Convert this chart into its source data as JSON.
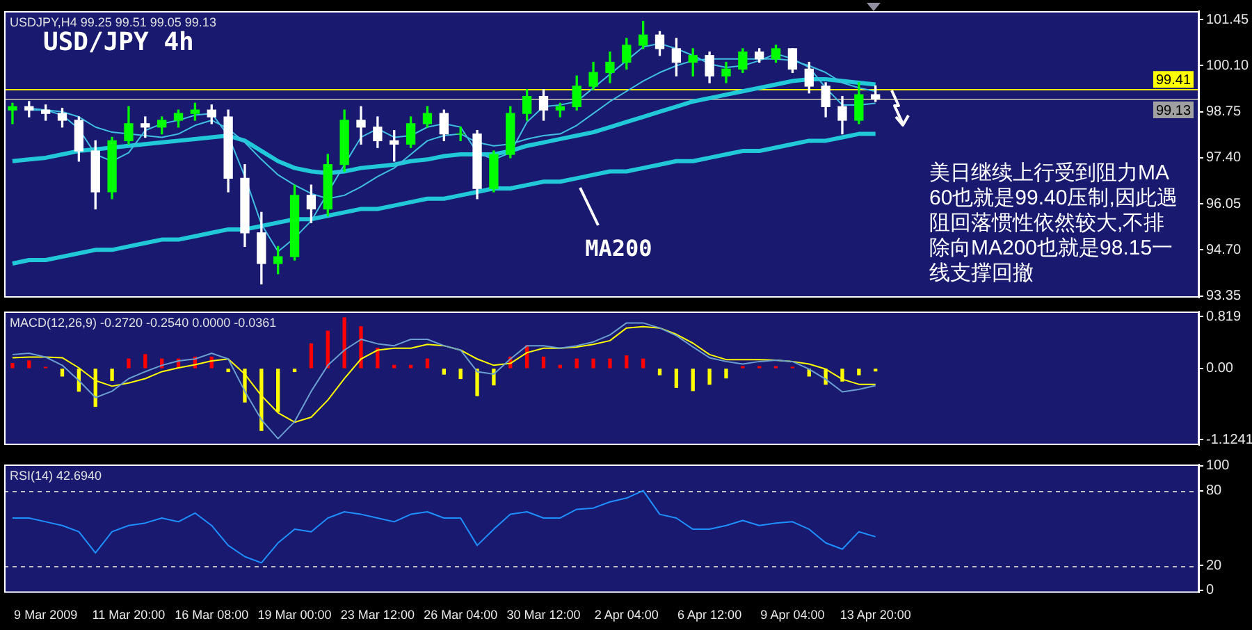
{
  "chart_data": [
    {
      "type": "candlestick",
      "title": "USD/JPY 4h",
      "subtitle": "USDJPY,H4 99.25 99.51 99.05 99.13",
      "colors": [
        "#00ff00",
        "#ffffff",
        "#ffffff",
        "#ffffff",
        "#ffffff",
        "#ffffff",
        "#00ff00",
        "#00ff00",
        "#ffffff",
        "#00ff00",
        "#00ff00",
        "#00ff00",
        "#ffffff",
        "#ffffff",
        "#ffffff",
        "#ffffff",
        "#00ff00",
        "#00ff00",
        "#ffffff",
        "#00ff00",
        "#00ff00",
        "#ffffff",
        "#ffffff",
        "#ffffff",
        "#00ff00",
        "#00ff00",
        "#ffffff",
        "#00ff00",
        "#ffffff",
        "#00ff00",
        "#00ff00",
        "#00ff00",
        "#ffffff",
        "#00ff00",
        "#00ff00",
        "#00ff00",
        "#00ff00",
        "#00ff00",
        "#00ff00",
        "#ffffff",
        "#ffffff",
        "#00ff00",
        "#ffffff",
        "#00ff00",
        "#00ff00",
        "#ffffff",
        "#00ff00",
        "#ffffff",
        "#ffffff",
        "#ffffff",
        "#ffffff",
        "#00ff00",
        "#ffffff",
        null,
        null,
        null,
        null,
        null,
        null,
        null,
        null,
        null,
        null,
        null,
        null,
        null,
        null,
        null,
        null,
        null,
        null,
        null
      ],
      "categories": [
        null,
        null,
        null,
        null,
        null,
        null,
        null,
        null,
        null,
        null,
        null,
        null,
        null,
        null,
        null,
        null,
        null,
        null,
        null,
        null,
        null,
        null,
        null,
        null,
        null,
        null,
        null,
        null,
        null,
        null,
        null,
        null,
        null,
        null,
        null,
        null,
        null,
        null,
        null,
        null,
        null,
        null,
        null,
        null,
        null,
        null,
        null,
        null,
        null,
        null,
        null,
        null,
        null,
        null,
        null,
        null,
        null,
        null,
        null,
        null,
        null,
        null,
        null,
        null,
        null,
        null,
        null,
        null,
        null,
        null,
        null,
        null
      ],
      "ohlc": [
        [
          98.8,
          99.0,
          98.4,
          98.9
        ],
        [
          98.9,
          99.05,
          98.6,
          98.8
        ],
        [
          98.8,
          98.95,
          98.5,
          98.7
        ],
        [
          98.7,
          98.85,
          98.3,
          98.5
        ],
        [
          98.5,
          98.6,
          97.3,
          97.6
        ],
        [
          97.6,
          97.9,
          95.9,
          96.4
        ],
        [
          96.4,
          98.0,
          96.2,
          97.9
        ],
        [
          97.9,
          98.9,
          97.8,
          98.4
        ],
        [
          98.4,
          98.6,
          98.0,
          98.3
        ],
        [
          98.3,
          98.6,
          98.1,
          98.5
        ],
        [
          98.5,
          98.8,
          98.3,
          98.7
        ],
        [
          98.7,
          99.0,
          98.5,
          98.8
        ],
        [
          98.8,
          98.95,
          98.4,
          98.6
        ],
        [
          98.6,
          98.8,
          96.4,
          96.8
        ],
        [
          96.8,
          97.2,
          94.8,
          95.2
        ],
        [
          95.2,
          95.8,
          93.7,
          94.3
        ],
        [
          94.3,
          94.8,
          94.0,
          94.5
        ],
        [
          94.5,
          96.6,
          94.4,
          96.3
        ],
        [
          96.3,
          96.6,
          95.5,
          95.9
        ],
        [
          95.9,
          97.5,
          95.7,
          97.2
        ],
        [
          97.2,
          98.8,
          97.0,
          98.5
        ],
        [
          98.5,
          98.9,
          97.8,
          98.3
        ],
        [
          98.3,
          98.6,
          97.7,
          97.9
        ],
        [
          97.9,
          98.2,
          97.3,
          97.8
        ],
        [
          97.8,
          98.6,
          97.7,
          98.4
        ],
        [
          98.4,
          98.9,
          98.3,
          98.7
        ],
        [
          98.7,
          98.8,
          97.9,
          98.1
        ],
        [
          98.1,
          98.3,
          97.9,
          98.1
        ],
        [
          98.1,
          98.2,
          96.2,
          96.5
        ],
        [
          96.5,
          97.6,
          96.4,
          97.5
        ],
        [
          97.5,
          98.9,
          97.4,
          98.7
        ],
        [
          98.7,
          99.4,
          98.5,
          99.2
        ],
        [
          99.2,
          99.4,
          98.5,
          98.8
        ],
        [
          98.8,
          99.0,
          98.6,
          98.9
        ],
        [
          98.9,
          99.8,
          98.8,
          99.5
        ],
        [
          99.5,
          100.2,
          99.4,
          99.9
        ],
        [
          99.9,
          100.5,
          99.6,
          100.2
        ],
        [
          100.2,
          100.9,
          100.0,
          100.7
        ],
        [
          100.7,
          101.4,
          100.6,
          101.0
        ],
        [
          101.0,
          101.1,
          100.4,
          100.6
        ],
        [
          100.6,
          100.9,
          99.8,
          100.2
        ],
        [
          100.2,
          100.6,
          99.8,
          100.4
        ],
        [
          100.4,
          100.5,
          99.6,
          99.8
        ],
        [
          99.8,
          100.2,
          99.6,
          100.0
        ],
        [
          100.0,
          100.6,
          99.9,
          100.5
        ],
        [
          100.5,
          100.6,
          100.2,
          100.3
        ],
        [
          100.3,
          100.7,
          100.2,
          100.6
        ],
        [
          100.6,
          100.6,
          99.9,
          100.0
        ],
        [
          100.0,
          100.2,
          99.3,
          99.5
        ],
        [
          99.5,
          99.6,
          98.6,
          98.9
        ],
        [
          98.9,
          99.2,
          98.1,
          98.5
        ],
        [
          98.5,
          99.6,
          98.4,
          99.25
        ],
        [
          99.25,
          99.51,
          99.05,
          99.13
        ],
        null,
        null,
        null,
        null,
        null,
        null,
        null,
        null,
        null,
        null,
        null,
        null,
        null,
        null,
        null,
        null,
        null,
        null,
        null
      ],
      "series": [
        {
          "type": "line",
          "color": "#40c0e0",
          "values": [
            null,
            98.85,
            98.8,
            98.65,
            98.25,
            97.5,
            97.3,
            97.55,
            98.2,
            98.4,
            98.5,
            98.65,
            98.7,
            98.05,
            96.85,
            95.45,
            94.65,
            95.05,
            95.55,
            null,
            97.2,
            98.0,
            98.25,
            98.0,
            98.05,
            98.3,
            98.4,
            98.3,
            97.55,
            97.35,
            97.55,
            98.45,
            98.9,
            98.95,
            99.05,
            99.45,
            99.85,
            100.25,
            100.65,
            100.75,
            100.6,
            100.4,
            100.15,
            100.05,
            100.1,
            100.25,
            100.45,
            100.3,
            100.05,
            99.45,
            98.95,
            98.95,
            99.0,
            null,
            null,
            null,
            null,
            null,
            null,
            null,
            null,
            null,
            null,
            null,
            null,
            null,
            null,
            null,
            null,
            null,
            null,
            null
          ]
        },
        {
          "type": "line",
          "color": "#40c0e0",
          "values": [
            null,
            98.8,
            98.8,
            98.75,
            98.6,
            98.3,
            98.15,
            98.1,
            98.05,
            98.0,
            98.1,
            98.35,
            98.5,
            98.25,
            97.85,
            97.35,
            96.9,
            96.6,
            96.35,
            96.2,
            96.3,
            96.55,
            96.85,
            97.1,
            97.5,
            97.9,
            98.05,
            98.1,
            97.85,
            97.75,
            97.8,
            97.95,
            98.05,
            98.1,
            98.35,
            98.7,
            99.05,
            99.35,
            99.65,
            99.9,
            100.1,
            100.25,
            100.3,
            100.3,
            100.3,
            100.3,
            100.3,
            100.25,
            100.1,
            99.9,
            99.6,
            99.45,
            99.35,
            null,
            null,
            null,
            null,
            null,
            null,
            null,
            null,
            null,
            null,
            null,
            null,
            null,
            null,
            null,
            null,
            null,
            null,
            null
          ]
        },
        {
          "type": "line",
          "color": "#20c8d8",
          "values": [
            97.3,
            97.35,
            97.4,
            97.5,
            97.6,
            97.65,
            97.7,
            97.75,
            97.8,
            97.85,
            97.9,
            97.95,
            98.0,
            98.05,
            97.9,
            97.6,
            97.3,
            97.1,
            97.0,
            96.95,
            97.0,
            97.1,
            97.15,
            97.2,
            97.3,
            97.35,
            97.45,
            97.5,
            97.5,
            97.5,
            97.6,
            97.75,
            97.85,
            97.95,
            98.05,
            98.15,
            98.3,
            98.45,
            98.6,
            98.75,
            98.9,
            99.05,
            99.15,
            99.25,
            99.35,
            99.45,
            99.55,
            99.65,
            99.7,
            99.7,
            99.65,
            99.6,
            99.55,
            null,
            null,
            null,
            null,
            null,
            null,
            null,
            null,
            null,
            null,
            null,
            null,
            null,
            null,
            null,
            null,
            null,
            null,
            null
          ]
        },
        {
          "type": "line",
          "name": "MA200",
          "color": "#20c8d8",
          "values": [
            94.3,
            94.4,
            94.4,
            94.5,
            94.6,
            94.7,
            94.7,
            94.8,
            94.9,
            95.0,
            95.0,
            95.1,
            95.2,
            95.3,
            95.3,
            95.4,
            95.5,
            95.6,
            95.6,
            95.7,
            95.8,
            95.9,
            95.9,
            96.0,
            96.1,
            96.2,
            96.2,
            96.3,
            96.4,
            96.5,
            96.5,
            96.6,
            96.7,
            96.7,
            96.8,
            96.9,
            97.0,
            97.0,
            97.1,
            97.2,
            97.3,
            97.3,
            97.4,
            97.5,
            97.6,
            97.6,
            97.7,
            97.8,
            97.9,
            97.9,
            98.0,
            98.1,
            98.1,
            null,
            null,
            null,
            null,
            null,
            null,
            null,
            null,
            null,
            null,
            null,
            null,
            null,
            null,
            null,
            null,
            null,
            null,
            null
          ]
        }
      ],
      "ylim": [
        93.3,
        101.7
      ],
      "yticks": [
        93.35,
        {
          "value": 94.7,
          "label": "94.70"
        },
        96.05,
        {
          "value": 97.4,
          "label": "97.40"
        },
        98.75,
        {
          "value": 100.1,
          "label": "100.10"
        },
        101.45
      ],
      "ref_lines": [
        {
          "axis": "y",
          "value": 99.41,
          "label": "99.41",
          "color": "#ffff00"
        },
        {
          "axis": "y",
          "value": 99.13,
          "label": "99.13",
          "color": "#a0a0a0"
        }
      ],
      "annotations": [
        "美日继续上行受到阻力MA60也就是99.40压制,因此遇阻回落惯性依然较大,不排除向MA200也就是98.15一线支撑回撤"
      ],
      "tick_labels": "y"
    },
    {
      "type": "bar",
      "subtitle": "MACD(12,26,9) -0.2720 -0.2540 0.0000 -0.0361",
      "categories": [
        null,
        null,
        null,
        null,
        null,
        null,
        null,
        null,
        null,
        null,
        null,
        null,
        null,
        null,
        null,
        null,
        null,
        null,
        null,
        null,
        null,
        null,
        null,
        null,
        null,
        null,
        null,
        null,
        null,
        null,
        null,
        null,
        null,
        null,
        null,
        null,
        null,
        null,
        null,
        null,
        null,
        null,
        null,
        null,
        null,
        null,
        null,
        null,
        null,
        null,
        null,
        null,
        null,
        null,
        null,
        null,
        null,
        null,
        null,
        null,
        null,
        null,
        null,
        null,
        null,
        null,
        null,
        null,
        null,
        null,
        null,
        null
      ],
      "series": [
        {
          "colors": [
            "#ff0000",
            "#ff0000",
            "#ff0000",
            "#ffff00",
            "#ffff00",
            "#ffff00",
            "#ffff00",
            "#ff0000",
            "#ff0000",
            "#ff0000",
            "#ff0000",
            "#ff0000",
            "#ff0000",
            "#ffff00",
            "#ffff00",
            "#ffff00",
            "#ffff00",
            "#ffff00",
            "#ff0000",
            "#ff0000",
            "#ff0000",
            "#ff0000",
            "#ff0000",
            "#ff0000",
            "#ff0000",
            "#ff0000",
            "#ffff00",
            "#ffff00",
            "#ffff00",
            "#ffff00",
            "#ff0000",
            "#ff0000",
            "#ff0000",
            "#ff0000",
            "#ff0000",
            "#ff0000",
            "#ff0000",
            "#ff0000",
            "#ff0000",
            "#ffff00",
            "#ffff00",
            "#ffff00",
            "#ffff00",
            "#ffff00",
            "#ff0000",
            "#ff0000",
            "#ff0000",
            "#ff0000",
            "#ffff00",
            "#ffff00",
            "#ffff00",
            "#ffff00",
            "#ffff00",
            null,
            null,
            null,
            null,
            null,
            null,
            null,
            null,
            null,
            null,
            null,
            null,
            null,
            null,
            null,
            null,
            null,
            null,
            null
          ],
          "values": [
            0.08,
            0.12,
            0.02,
            -0.12,
            -0.36,
            -0.6,
            -0.19,
            0.15,
            0.22,
            0.15,
            0.15,
            0.18,
            0.18,
            -0.05,
            -0.53,
            -0.98,
            -0.68,
            -0.05,
            0.39,
            0.59,
            0.8,
            0.66,
            0.32,
            0.05,
            0.05,
            0.15,
            -0.09,
            -0.16,
            -0.43,
            -0.26,
            0.18,
            0.36,
            0.18,
            0.05,
            0.15,
            0.15,
            0.15,
            0.2,
            0.15,
            -0.1,
            -0.3,
            -0.35,
            -0.25,
            -0.15,
            0.03,
            0.03,
            0.03,
            0.02,
            -0.12,
            -0.25,
            -0.2,
            -0.1,
            -0.04,
            null,
            null,
            null,
            null,
            null,
            null,
            null,
            null,
            null,
            null,
            null,
            null,
            null,
            null,
            null,
            null,
            null,
            null,
            null
          ]
        },
        {
          "type": "line",
          "color": "#6a9fd0",
          "values": [
            0.22,
            0.24,
            0.18,
            0.05,
            -0.19,
            -0.46,
            -0.36,
            -0.16,
            -0.05,
            0.05,
            0.12,
            0.15,
            0.24,
            0.15,
            -0.36,
            -0.81,
            -1.11,
            -0.84,
            -0.36,
            0.05,
            0.29,
            0.46,
            0.39,
            0.36,
            0.46,
            0.46,
            0.36,
            0.29,
            -0.05,
            -0.09,
            0.15,
            0.36,
            0.36,
            0.32,
            0.36,
            0.42,
            0.53,
            0.72,
            0.72,
            0.64,
            0.52,
            0.34,
            0.17,
            0.11,
            0.07,
            0.11,
            0.13,
            0.11,
            -0.01,
            -0.17,
            -0.37,
            -0.33,
            -0.27,
            null,
            null,
            null,
            null,
            null,
            null,
            null,
            null,
            null,
            null,
            null,
            null,
            null,
            null,
            null,
            null,
            null,
            null,
            null
          ]
        },
        {
          "type": "line",
          "color": "#ffff00",
          "values": [
            0.17,
            0.18,
            0.18,
            0.17,
            0.01,
            -0.19,
            -0.28,
            -0.23,
            -0.16,
            -0.05,
            0.01,
            0.06,
            0.12,
            0.15,
            -0.09,
            -0.43,
            -0.7,
            -0.85,
            -0.77,
            -0.5,
            -0.16,
            0.15,
            0.29,
            0.32,
            0.32,
            0.38,
            0.36,
            0.29,
            0.15,
            0.05,
            0.08,
            0.25,
            0.32,
            0.32,
            0.34,
            0.38,
            0.44,
            0.64,
            0.66,
            0.64,
            0.54,
            0.4,
            0.22,
            0.14,
            0.14,
            0.14,
            0.13,
            0.11,
            0.07,
            -0.01,
            -0.17,
            -0.25,
            -0.25,
            null,
            null,
            null,
            null,
            null,
            null,
            null,
            null,
            null,
            null,
            null,
            null,
            null,
            null,
            null,
            null,
            null,
            null,
            null
          ]
        }
      ],
      "ylim": [
        -1.21,
        0.9
      ],
      "yticks": [
        -1.1241,
        {
          "value": 0,
          "label": "0.00"
        },
        0.819
      ],
      "tick_labels": "y"
    },
    {
      "type": "line",
      "subtitle": "RSI(14) 42.6940",
      "categories": [
        null,
        null,
        "9 Mar 2009",
        null,
        null,
        null,
        null,
        "11 Mar 20:00",
        null,
        null,
        null,
        null,
        "16 Mar 08:00",
        null,
        null,
        null,
        null,
        "19 Mar 00:00",
        null,
        null,
        null,
        null,
        "23 Mar 12:00",
        null,
        null,
        null,
        null,
        "26 Mar 04:00",
        null,
        null,
        null,
        null,
        "30 Mar 12:00",
        null,
        null,
        null,
        null,
        "2 Apr 04:00",
        null,
        null,
        null,
        null,
        "6 Apr 12:00",
        null,
        null,
        null,
        null,
        "9 Apr 04:00",
        null,
        null,
        null,
        null,
        "13 Apr 20:00",
        null,
        null,
        null,
        null,
        null,
        null,
        null,
        null,
        null,
        null,
        null,
        null,
        null,
        null,
        null,
        null,
        null,
        null,
        null
      ],
      "series": [
        {
          "color": "#1e90ff",
          "values": [
            58,
            58,
            55,
            52,
            47,
            30,
            47,
            52,
            54,
            58,
            55,
            62,
            52,
            36,
            27,
            22,
            38,
            49,
            47,
            58,
            63,
            61,
            58,
            55,
            61,
            63,
            58,
            58,
            36,
            49,
            61,
            63,
            58,
            58,
            65,
            66,
            71,
            74,
            80,
            61,
            58,
            49,
            49,
            52,
            56,
            52,
            54,
            55,
            49,
            38,
            33,
            47,
            43,
            null,
            null,
            null,
            null,
            null,
            null,
            null,
            null,
            null,
            null,
            null,
            null,
            null,
            null,
            null,
            null,
            null,
            null,
            null
          ]
        }
      ],
      "ylim": [
        -2,
        101
      ],
      "yticks": [
        0,
        20,
        80,
        100
      ],
      "ref_lines": [
        {
          "axis": "y",
          "value": 80,
          "color": "#c0c0c0",
          "line_style": "dashed"
        },
        {
          "axis": "y",
          "value": 20,
          "color": "#c0c0c0",
          "line_style": "dashed"
        }
      ]
    }
  ]
}
